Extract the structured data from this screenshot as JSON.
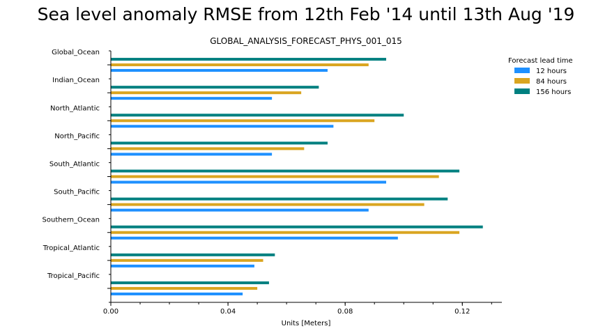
{
  "chart_data": {
    "type": "bar",
    "orientation": "horizontal",
    "title": "Sea level anomaly RMSE from 12th Feb '14 until 13th Aug '19",
    "subtitle": "GLOBAL_ANALYSIS_FORECAST_PHYS_001_015",
    "xlabel": "Units [Meters]",
    "ylabel": "",
    "xlim": [
      0,
      0.1335
    ],
    "x_ticks": [
      0.0,
      0.04,
      0.08,
      0.12
    ],
    "x_tick_labels": [
      "0.00",
      "0.04",
      "0.08",
      "0.12"
    ],
    "x_minor_step": 0.01,
    "grid": false,
    "legend": {
      "title": "Forecast lead time",
      "placement": "top-right"
    },
    "categories": [
      "Global_Ocean",
      "Indian_Ocean",
      "North_Atlantic",
      "North_Pacific",
      "South_Atlantic",
      "South_Pacific",
      "Southern_Ocean",
      "Tropical_Atlantic",
      "Tropical_Pacific"
    ],
    "series": [
      {
        "name": "12 hours",
        "color": "#1e90ff",
        "values": [
          0.074,
          0.055,
          0.076,
          0.055,
          0.094,
          0.088,
          0.098,
          0.049,
          0.045
        ]
      },
      {
        "name": "84 hours",
        "color": "#daa520",
        "values": [
          0.088,
          0.065,
          0.09,
          0.066,
          0.112,
          0.107,
          0.119,
          0.052,
          0.05
        ]
      },
      {
        "name": "156 hours",
        "color": "#008080",
        "values": [
          0.094,
          0.071,
          0.1,
          0.074,
          0.119,
          0.115,
          0.127,
          0.056,
          0.054
        ]
      }
    ]
  }
}
